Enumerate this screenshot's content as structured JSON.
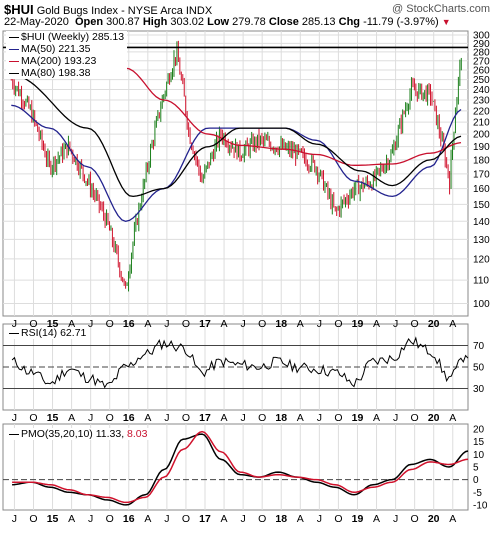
{
  "header": {
    "ticker": "$HUI",
    "name": "Gold Bugs Index - NYSE Arca INDX",
    "source": "@ StockCharts.com",
    "date": "22-May-2020",
    "open_label": "Open",
    "open": "300.87",
    "high_label": "High",
    "high": "303.02",
    "low_label": "Low",
    "low": "279.78",
    "close_label": "Close",
    "close": "285.13",
    "chg_label": "Chg",
    "chg": "-11.79 (-3.97%)",
    "chg_icon": "down-triangle-icon"
  },
  "legends": {
    "price": "$HUI (Weekly) 285.13",
    "ma50": "MA(50) 221.35",
    "ma200": "MA(200) 193.23",
    "ma80": "MA(80) 198.38",
    "rsi": "RSI(14) 62.71",
    "pmo_main": "PMO(35,20,10) 11.33,",
    "pmo_signal": "8.03"
  },
  "colors": {
    "up": "#1b7f1b",
    "down": "#d0122c",
    "ma50": "#23238e",
    "ma200": "#c8102e",
    "ma80": "#000000",
    "grid": "#dddddd"
  },
  "chart_data": [
    {
      "type": "candlestick",
      "title": "$HUI (Weekly)",
      "x_tick_labels": [
        "J",
        "O",
        "15",
        "A",
        "J",
        "O",
        "16",
        "A",
        "J",
        "O",
        "17",
        "A",
        "J",
        "O",
        "18",
        "A",
        "J",
        "O",
        "19",
        "A",
        "J",
        "O",
        "20",
        "A"
      ],
      "y_tick_labels": [
        100,
        110,
        120,
        130,
        140,
        150,
        160,
        170,
        180,
        190,
        200,
        210,
        220,
        230,
        240,
        250,
        260,
        270,
        280,
        290,
        300
      ],
      "ylim": [
        95,
        305
      ],
      "y_scale": "log",
      "horizontal_line": 285.13,
      "series": [
        {
          "name": "$HUI (Weekly)",
          "x": [
            "2014-06",
            "2014-09",
            "2014-12",
            "2015-03",
            "2015-06",
            "2015-09",
            "2015-12",
            "2016-03",
            "2016-06",
            "2016-08",
            "2016-10",
            "2016-12",
            "2017-03",
            "2017-06",
            "2017-09",
            "2017-12",
            "2018-03",
            "2018-06",
            "2018-09",
            "2018-12",
            "2019-03",
            "2019-06",
            "2019-09",
            "2019-12",
            "2020-03",
            "2020-05"
          ],
          "values": [
            250,
            220,
            175,
            190,
            165,
            140,
            105,
            165,
            235,
            280,
            200,
            165,
            200,
            185,
            195,
            190,
            185,
            175,
            145,
            160,
            165,
            185,
            240,
            235,
            165,
            285
          ]
        },
        {
          "name": "MA(50)",
          "x": [
            "2014-06",
            "2014-12",
            "2015-06",
            "2015-12",
            "2016-06",
            "2017-01",
            "2017-06",
            "2018-01",
            "2018-06",
            "2018-12",
            "2019-06",
            "2019-12",
            "2020-05"
          ],
          "values": [
            225,
            205,
            175,
            140,
            160,
            205,
            205,
            205,
            195,
            165,
            155,
            175,
            221.35
          ]
        },
        {
          "name": "MA(200)",
          "x": [
            "2015-12",
            "2016-06",
            "2017-01",
            "2017-06",
            "2018-01",
            "2018-06",
            "2018-12",
            "2019-06",
            "2019-12",
            "2020-05"
          ],
          "values": [
            262,
            230,
            200,
            191,
            188,
            184,
            176,
            177,
            185,
            193.23
          ]
        },
        {
          "name": "MA(80)",
          "x": [
            "2014-06",
            "2015-06",
            "2016-01",
            "2016-06",
            "2017-01",
            "2017-06",
            "2018-01",
            "2018-06",
            "2019-01",
            "2019-06",
            "2019-12",
            "2020-05"
          ],
          "values": [
            255,
            205,
            155,
            160,
            190,
            205,
            205,
            192,
            172,
            162,
            180,
            198.38
          ]
        }
      ]
    },
    {
      "type": "line",
      "title": "RSI(14)",
      "x_tick_labels": [
        "J",
        "O",
        "15",
        "A",
        "J",
        "O",
        "16",
        "A",
        "J",
        "O",
        "17",
        "A",
        "J",
        "O",
        "18",
        "A",
        "J",
        "O",
        "19",
        "A",
        "J",
        "O",
        "20",
        "A"
      ],
      "y_tick_labels": [
        30,
        50,
        70
      ],
      "ylim": [
        10,
        90
      ],
      "reference_lines": [
        30,
        50,
        70
      ],
      "series": [
        {
          "name": "RSI(14)",
          "values": [
            55,
            45,
            35,
            48,
            40,
            32,
            50,
            62,
            72,
            68,
            45,
            55,
            52,
            50,
            55,
            50,
            48,
            45,
            35,
            55,
            58,
            74,
            65,
            40,
            62.71
          ]
        }
      ]
    },
    {
      "type": "line",
      "title": "PMO(35,20,10)",
      "x_tick_labels": [
        "J",
        "O",
        "15",
        "A",
        "J",
        "O",
        "16",
        "A",
        "J",
        "O",
        "17",
        "A",
        "J",
        "O",
        "18",
        "A",
        "J",
        "O",
        "19",
        "A",
        "J",
        "O",
        "20",
        "A"
      ],
      "y_tick_labels": [
        -10,
        -5,
        0,
        5,
        10,
        15,
        20
      ],
      "ylim": [
        -12,
        22
      ],
      "reference_lines": [
        0
      ],
      "series": [
        {
          "name": "PMO",
          "values": [
            -2,
            -1,
            -3,
            -5,
            -6,
            -8,
            -10,
            -6,
            4,
            16,
            18,
            8,
            2,
            1,
            3,
            1,
            -1,
            -3,
            -6,
            -2,
            0,
            6,
            8,
            5,
            11.33
          ]
        },
        {
          "name": "Signal",
          "values": [
            -1,
            -1,
            -2,
            -4,
            -6,
            -7,
            -9,
            -7,
            1,
            12,
            19,
            11,
            3,
            1,
            2,
            1,
            0,
            -2,
            -5,
            -3,
            -1,
            4,
            7,
            6,
            8.03
          ]
        }
      ]
    }
  ]
}
